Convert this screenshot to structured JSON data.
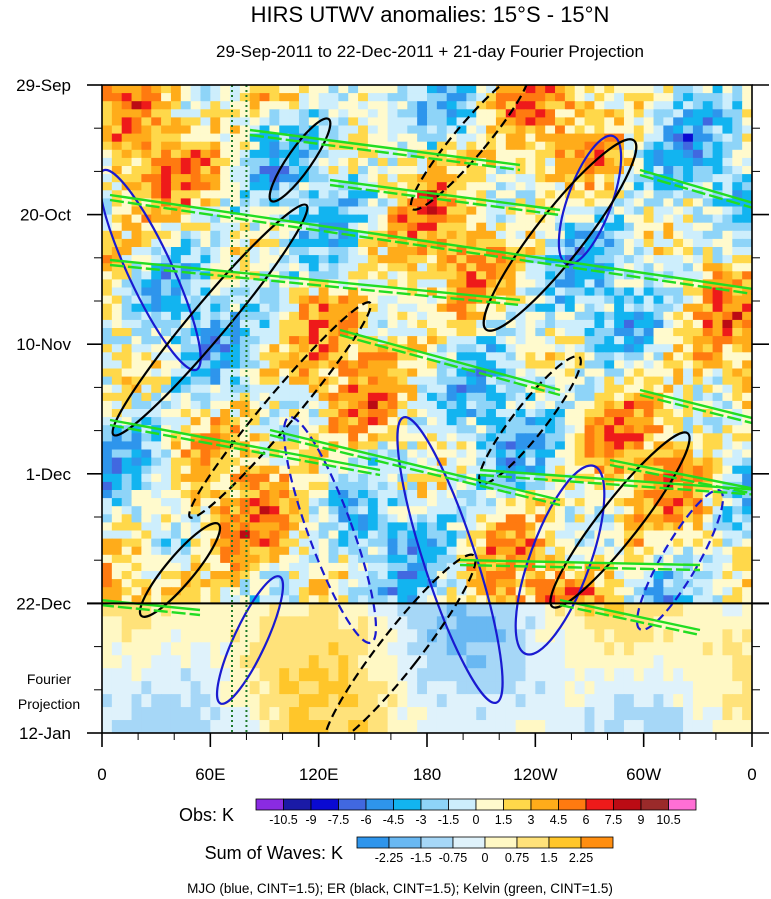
{
  "chart_data": {
    "type": "heatmap",
    "title": "HIRS UTWV anomalies: 15°S - 15°N",
    "subtitle": "29-Sep-2011 to 22-Dec-2011 + 21-day Fourier Projection",
    "y_ticks": [
      {
        "label": "29-Sep",
        "day": 0
      },
      {
        "label": "20-Oct",
        "day": 21
      },
      {
        "label": "10-Nov",
        "day": 42
      },
      {
        "label": "1-Dec",
        "day": 63
      },
      {
        "label": "22-Dec",
        "day": 84
      },
      {
        "label": "12-Jan",
        "day": 105
      }
    ],
    "y_range_days": [
      0,
      105
    ],
    "projection_start_day": 84,
    "projection_label_line1": "Fourier",
    "projection_label_line2": "Projection",
    "x_ticks": [
      {
        "label": "0",
        "lon": 0
      },
      {
        "label": "60E",
        "lon": 60
      },
      {
        "label": "120E",
        "lon": 120
      },
      {
        "label": "180",
        "lon": 180
      },
      {
        "label": "120W",
        "lon": 240
      },
      {
        "label": "60W",
        "lon": 300
      },
      {
        "label": "0",
        "lon": 360
      }
    ],
    "x_range_lon": [
      0,
      360
    ],
    "reference_lines_lon": [
      72,
      80
    ],
    "obs_colorbar": {
      "title": "Obs: K",
      "labels": [
        "-10.5",
        "-9",
        "-7.5",
        "-6",
        "-4.5",
        "-3",
        "-1.5",
        "0",
        "1.5",
        "3",
        "4.5",
        "6",
        "7.5",
        "9",
        "10.5"
      ],
      "colors": [
        "#8a2be2",
        "#1a1aa6",
        "#0a0ad2",
        "#4168e0",
        "#2e95ec",
        "#12b4f0",
        "#8ed4f8",
        "#cdeefc",
        "#fffacd",
        "#ffd84a",
        "#ffac1a",
        "#ff7a10",
        "#ee1a1a",
        "#bb0b14",
        "#9a2a2a",
        "#ff6fd5"
      ]
    },
    "waves_colorbar": {
      "title": "Sum of Waves: K",
      "labels": [
        "-2.25",
        "-1.5",
        "-0.75",
        "0",
        "0.75",
        "1.5",
        "2.25"
      ],
      "colors": [
        "#2e95ec",
        "#69b8f2",
        "#a6d7f7",
        "#dff2fb",
        "#fff8c4",
        "#ffe27a",
        "#ffc62a",
        "#ff8e10"
      ]
    },
    "caption": "MJO (blue, CINT=1.5); ER (black, CINT=1.5); Kelvin (green, CINT=1.5)",
    "wave_colors": {
      "mjo": "#1a1ad0",
      "er": "#000000",
      "kelvin": "#22dd22"
    }
  }
}
